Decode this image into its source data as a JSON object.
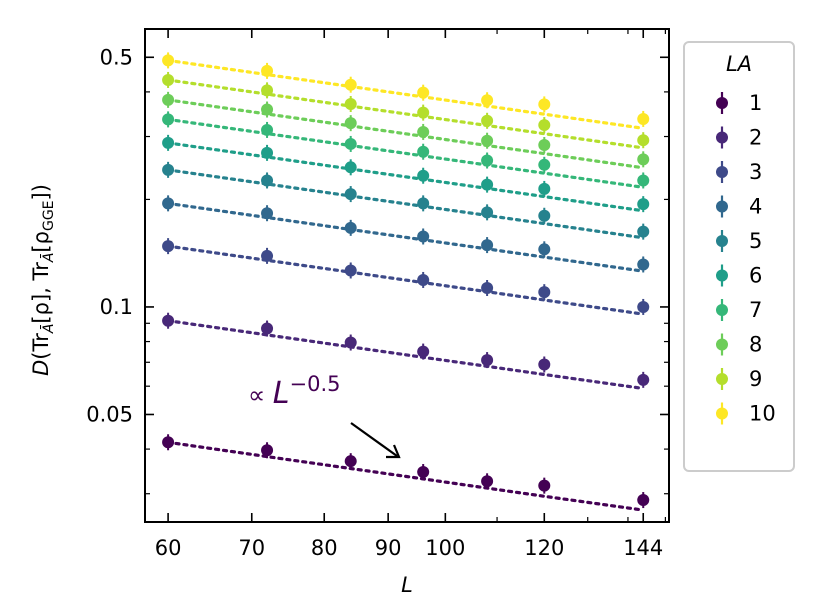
{
  "chart_data": {
    "type": "scatter",
    "xlabel": "L",
    "ylabel_parts": {
      "d": "D",
      "tr1": "(Tr",
      "abar1": "Ā",
      "rho1": "[ρ], Tr",
      "abar2": "Ā",
      "rho2": "[ρ",
      "gge": "GGE",
      "close": "])"
    },
    "x_scale": "log",
    "y_scale": "log",
    "xlim": [
      57.5,
      151
    ],
    "ylim": [
      0.025,
      0.6
    ],
    "x_ticks": [
      60,
      70,
      80,
      90,
      100,
      120,
      144
    ],
    "x_tick_labels": [
      "60",
      "70",
      "80",
      "90",
      "100",
      "120",
      "144"
    ],
    "y_ticks": [
      0.05,
      0.1,
      0.5
    ],
    "y_tick_labels": [
      "0.05",
      "0.1",
      "0.5"
    ],
    "x": [
      60,
      72,
      84,
      96,
      108,
      120,
      144
    ],
    "legend_title": "LA",
    "legend_position": "outside-right",
    "fit_exponent": -0.5,
    "annotation": {
      "prefix": "∝ ",
      "base": "L",
      "exponent": "−0.5",
      "color": "#440154"
    },
    "series": [
      {
        "name": "1",
        "color": "#440154",
        "values": [
          0.0418,
          0.0397,
          0.037,
          0.0345,
          0.0325,
          0.0316,
          0.0288
        ],
        "fit": [
          0.0418,
          0.0381,
          0.0353,
          0.033,
          0.0311,
          0.0295,
          0.027
        ]
      },
      {
        "name": "2",
        "color": "#482878",
        "values": [
          0.0915,
          0.087,
          0.0795,
          0.075,
          0.071,
          0.069,
          0.0625
        ],
        "fit": [
          0.0915,
          0.0835,
          0.0773,
          0.0723,
          0.0682,
          0.0647,
          0.0591
        ]
      },
      {
        "name": "3",
        "color": "#3E4A89",
        "values": [
          0.148,
          0.139,
          0.1265,
          0.119,
          0.113,
          0.11,
          0.1
        ],
        "fit": [
          0.148,
          0.1351,
          0.1251,
          0.117,
          0.1103,
          0.1046,
          0.0955
        ]
      },
      {
        "name": "4",
        "color": "#31688E",
        "values": [
          0.195,
          0.183,
          0.1665,
          0.1575,
          0.149,
          0.145,
          0.1315
        ],
        "fit": [
          0.195,
          0.178,
          0.1648,
          0.1542,
          0.1454,
          0.1379,
          0.1259
        ]
      },
      {
        "name": "5",
        "color": "#26828E",
        "values": [
          0.242,
          0.226,
          0.207,
          0.195,
          0.184,
          0.18,
          0.1625
        ],
        "fit": [
          0.242,
          0.2209,
          0.2045,
          0.1913,
          0.1804,
          0.1711,
          0.1562
        ]
      },
      {
        "name": "6",
        "color": "#1F9E89",
        "values": [
          0.288,
          0.27,
          0.246,
          0.233,
          0.22,
          0.214,
          0.194
        ],
        "fit": [
          0.288,
          0.2629,
          0.2434,
          0.2277,
          0.2147,
          0.2037,
          0.1859
        ]
      },
      {
        "name": "7",
        "color": "#35B779",
        "values": [
          0.335,
          0.313,
          0.286,
          0.272,
          0.257,
          0.25,
          0.226
        ],
        "fit": [
          0.335,
          0.3058,
          0.2831,
          0.2648,
          0.2497,
          0.2369,
          0.2163
        ]
      },
      {
        "name": "8",
        "color": "#6DCD59",
        "values": [
          0.38,
          0.357,
          0.327,
          0.309,
          0.292,
          0.284,
          0.259
        ],
        "fit": [
          0.38,
          0.3469,
          0.3212,
          0.3004,
          0.2832,
          0.2687,
          0.2453
        ]
      },
      {
        "name": "9",
        "color": "#B4DE2C",
        "values": [
          0.432,
          0.404,
          0.37,
          0.35,
          0.332,
          0.323,
          0.293
        ],
        "fit": [
          0.432,
          0.3944,
          0.3651,
          0.3415,
          0.322,
          0.3055,
          0.2788
        ]
      },
      {
        "name": "10",
        "color": "#FDE725",
        "values": [
          0.49,
          0.458,
          0.419,
          0.398,
          0.379,
          0.369,
          0.336
        ],
        "fit": [
          0.49,
          0.4473,
          0.4141,
          0.3874,
          0.3652,
          0.3465,
          0.3163
        ]
      }
    ]
  }
}
